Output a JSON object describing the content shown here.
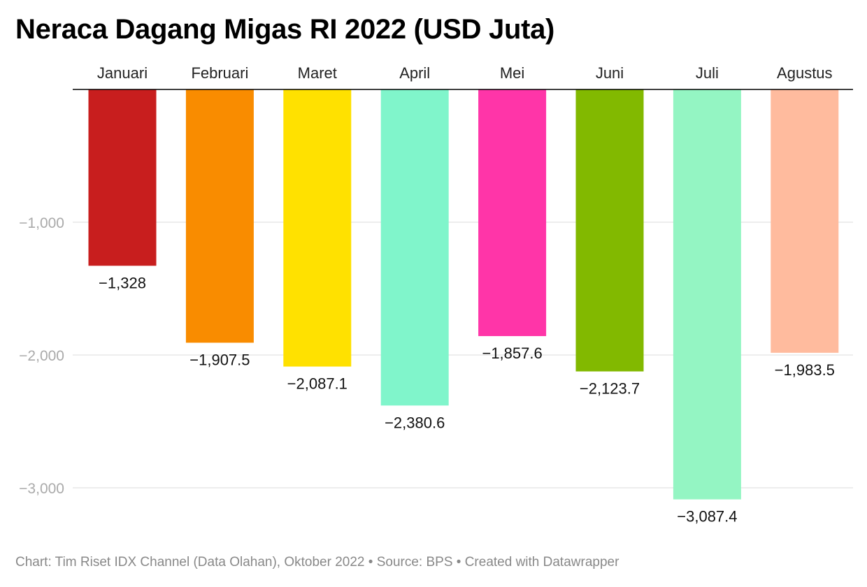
{
  "title": "Neraca Dagang Migas RI 2022 (USD Juta)",
  "footer": "Chart: Tim Riset IDX Channel (Data Olahan), Oktober 2022 • Source: BPS • Created with Datawrapper",
  "chart_data": {
    "type": "bar",
    "title": "Neraca Dagang Migas RI 2022 (USD Juta)",
    "categories": [
      "Januari",
      "Februari",
      "Maret",
      "April",
      "Mei",
      "Juni",
      "Juli",
      "Agustus"
    ],
    "values": [
      -1328,
      -1907.5,
      -2087.1,
      -2380.6,
      -1857.6,
      -2123.7,
      -3087.4,
      -1983.5
    ],
    "value_labels": [
      "−1,328",
      "−1,907.5",
      "−2,087.1",
      "−2,380.6",
      "−1,857.6",
      "−2,123.7",
      "−3,087.4",
      "−1,983.5"
    ],
    "colors": [
      "#c81e1e",
      "#f98c00",
      "#ffe100",
      "#80f5cb",
      "#ff35a8",
      "#82b900",
      "#94f5c3",
      "#ffbb9e"
    ],
    "yticks": [
      -1000,
      -2000,
      -3000
    ],
    "ytick_labels": [
      "−1,000",
      "−2,000",
      "−3,000"
    ],
    "ylim": [
      -3200,
      0
    ],
    "category_axis_position": "top",
    "grid": true
  }
}
